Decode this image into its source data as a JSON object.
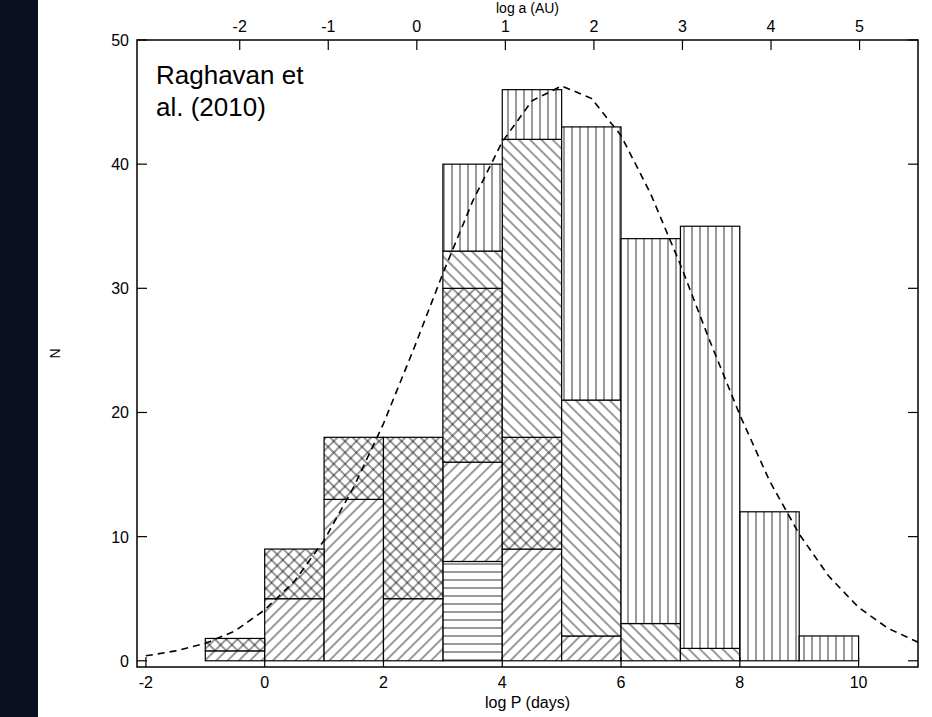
{
  "chart_data": {
    "type": "histogram",
    "stacked": true,
    "x_label": "log P (days)",
    "x2_label": "log a (AU)",
    "y_label": "N",
    "annotation": "Raghavan et al. (2010)",
    "bins": [
      -1,
      0,
      1,
      2,
      3,
      4,
      5,
      6,
      7,
      8,
      9,
      10
    ],
    "series": [
      {
        "values": [
          0,
          0,
          0,
          0,
          8,
          0,
          0,
          0,
          0,
          0,
          0
        ]
      },
      {
        "values": [
          0.8,
          5,
          13,
          5,
          8,
          9,
          2,
          0,
          0,
          0,
          0
        ]
      },
      {
        "values": [
          1,
          4,
          5,
          13,
          14,
          9,
          0,
          0,
          0,
          0,
          0
        ]
      },
      {
        "values": [
          0,
          0,
          0,
          0,
          3,
          24,
          19,
          3,
          1,
          0,
          0
        ]
      },
      {
        "values": [
          0,
          0,
          0,
          0,
          7,
          4,
          22,
          31,
          34,
          12,
          2
        ]
      },
      {
        "type": "line",
        "line_style": "dashed",
        "x": [
          -2,
          -1.5,
          -1,
          -0.5,
          0,
          0.5,
          1,
          1.5,
          2,
          2.5,
          3,
          3.5,
          4,
          4.5,
          5,
          5.5,
          6,
          6.5,
          7,
          7.5,
          8,
          8.5,
          9,
          9.5,
          10,
          10.5,
          11
        ],
        "values": [
          0.4,
          0.8,
          1.4,
          2.4,
          4.1,
          6.4,
          9.7,
          14.0,
          19.1,
          25.0,
          31.2,
          37.0,
          41.8,
          45.1,
          46.3,
          45.3,
          42.3,
          37.6,
          31.9,
          25.7,
          19.8,
          14.5,
          10.2,
          6.8,
          4.3,
          2.6,
          1.5
        ]
      }
    ],
    "xlim": [
      -2.15,
      11
    ],
    "xticks": [
      -2,
      0,
      2,
      4,
      6,
      8,
      10
    ],
    "x2lim": [
      -3.16,
      5.66
    ],
    "x2ticks": [
      -2,
      -1,
      0,
      1,
      2,
      3,
      4,
      5
    ],
    "ylim": [
      -0.5,
      50
    ],
    "yticks": [
      0,
      10,
      20,
      30,
      40,
      50
    ],
    "grid": false
  }
}
